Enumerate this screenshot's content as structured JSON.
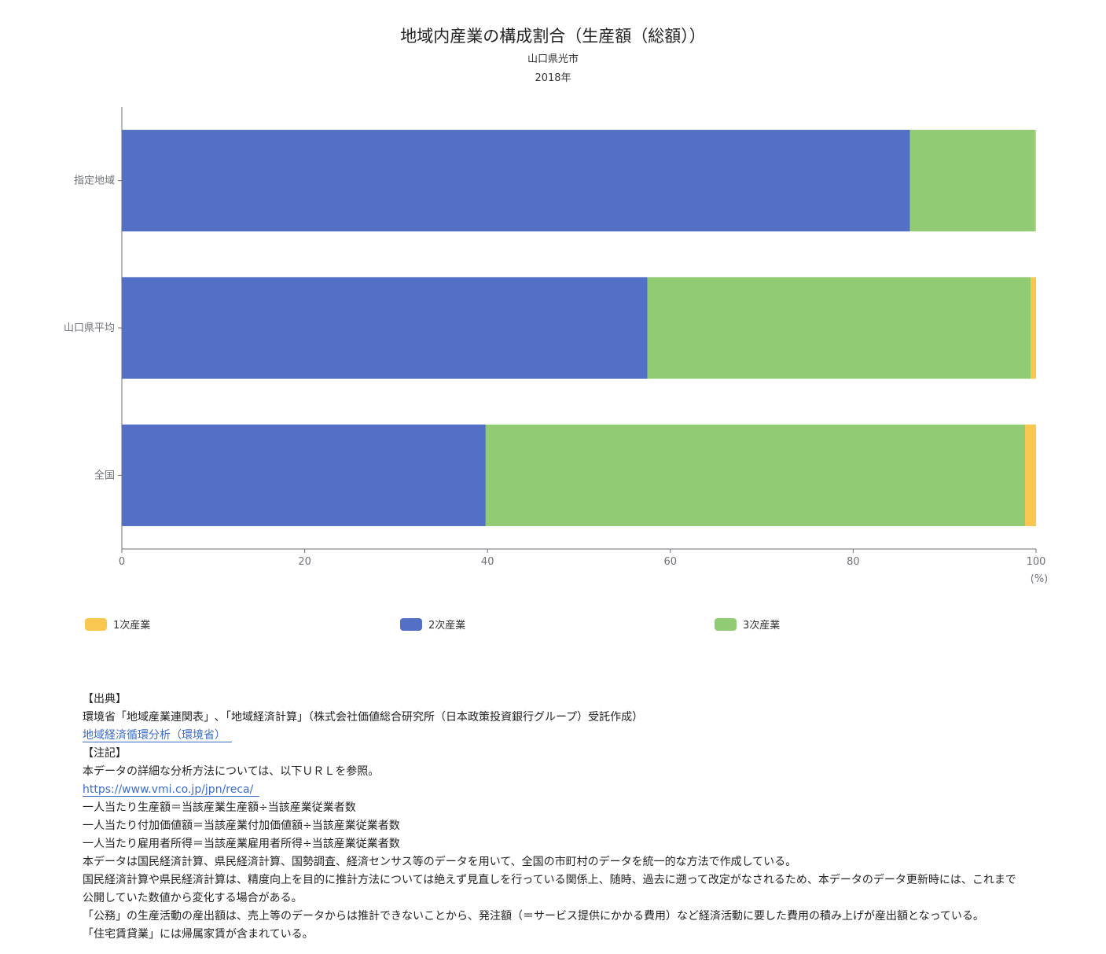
{
  "header": {
    "title": "地域内産業の構成割合（生産額（総額））",
    "region": "山口県光市",
    "year": "2018年"
  },
  "chart_data": {
    "type": "bar",
    "orientation": "horizontal",
    "stacked": true,
    "categories": [
      "指定地域",
      "山口県平均",
      "全国"
    ],
    "series": [
      {
        "name": "1次産業",
        "color": "#f9c74f",
        "values": [
          0.1,
          0.6,
          1.2
        ]
      },
      {
        "name": "2次産業",
        "color": "#5470c6",
        "values": [
          86.2,
          57.5,
          39.8
        ]
      },
      {
        "name": "3次産業",
        "color": "#91cc75",
        "values": [
          13.7,
          41.9,
          59.0
        ]
      }
    ],
    "series_order": [
      "2次産業",
      "3次産業",
      "1次産業"
    ],
    "xlim": [
      0,
      100
    ],
    "xticks": [
      "0",
      "20",
      "40",
      "60",
      "80",
      "100"
    ],
    "xunit": "(%)",
    "legend_position": "bottom"
  },
  "notes": {
    "source_heading": "【出典】",
    "source_text": "環境省「地域産業連関表」､「地域経済計算」（株式会社価値総合研究所（日本政策投資銀行グループ）受託作成）",
    "source_link": "地域経済循環分析（環境省）",
    "notes_heading": "【注記】",
    "method_text": "本データの詳細な分析方法については、以下ＵＲＬを参照。",
    "method_link": "https://www.vmi.co.jp/jpn/reca/",
    "lines": [
      "一人当たり生産額＝当該産業生産額÷当該産業従業者数",
      "一人当たり付加価値額＝当該産業付加価値額÷当該産業従業者数",
      "一人当たり雇用者所得＝当該産業雇用者所得÷当該産業従業者数",
      "本データは国民経済計算、県民経済計算、国勢調査、経済センサス等のデータを用いて、全国の市町村のデータを統一的な方法で作成している。",
      "国民経済計算や県民経済計算は、精度向上を目的に推計方法については絶えず見直しを行っている関係上、随時、過去に遡って改定がなされるため、本データのデータ更新時には、これまで公開していた数値から変化する場合がある。",
      "「公務」の生産活動の産出額は、売上等のデータからは推計できないことから、発注額（＝サービス提供にかかる費用）など経済活動に要した費用の積み上げが産出額となっている。",
      "「住宅賃貸業」には帰属家賃が含まれている。"
    ]
  }
}
